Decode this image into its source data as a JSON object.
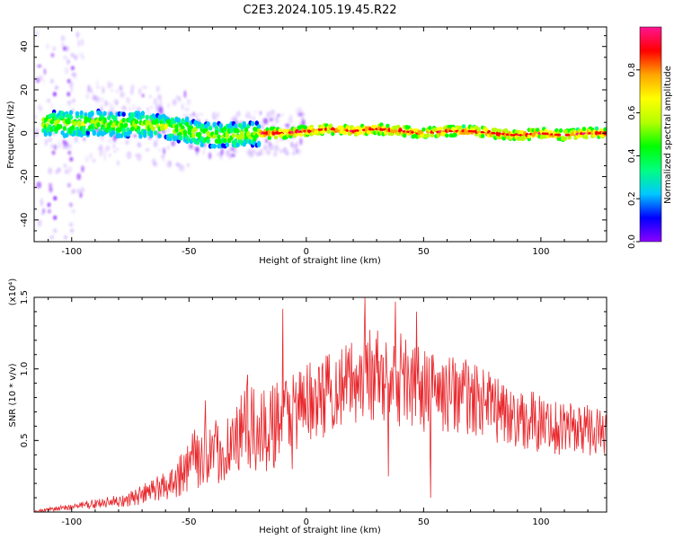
{
  "figure": {
    "title": "C2E3.2024.105.19.45.R22"
  },
  "colors": {
    "axis": "#000000",
    "snr_line": "#e8262b",
    "background": "#ffffff"
  },
  "chart_data": [
    {
      "type": "heatmap",
      "xlabel": "Height of straight line (km)",
      "ylabel": "Frequency (Hz)",
      "xlim": [
        -116,
        128
      ],
      "ylim": [
        -50,
        49
      ],
      "x_ticks": [
        -100,
        -50,
        0,
        50,
        100
      ],
      "x_tick_labels": [
        "-100",
        "-50",
        "0",
        "50",
        "100"
      ],
      "y_ticks": [
        -40,
        -20,
        0,
        20,
        40
      ],
      "y_tick_labels": [
        "-40",
        "-20",
        "0",
        "20",
        "40"
      ],
      "ridge": {
        "x": [
          -110,
          -100,
          -90,
          -80,
          -70,
          -60,
          -50,
          -40,
          -30,
          -20,
          -10,
          0,
          10,
          20,
          30,
          40,
          50,
          60,
          70,
          80,
          90,
          100,
          110,
          120,
          128
        ],
        "y": [
          5,
          4,
          5,
          4,
          4,
          3,
          1,
          -1,
          -1,
          0,
          0,
          1,
          2,
          1,
          2,
          1,
          0,
          1,
          1,
          0,
          -1,
          0,
          -1,
          0,
          0
        ]
      },
      "colorbar": {
        "label": "Normalized spectral amplitude",
        "range": [
          0,
          1
        ],
        "ticks": [
          0.0,
          0.2,
          0.4,
          0.6,
          0.8
        ],
        "tick_labels": [
          "0.0",
          "0.2",
          "0.4",
          "0.6",
          "0.8"
        ],
        "colormap": [
          "#8c00ff",
          "#0000ff",
          "#00c8ff",
          "#00ff7f",
          "#00ff00",
          "#b4ff00",
          "#ffff00",
          "#ffa500",
          "#ff0000",
          "#ff1493"
        ]
      }
    },
    {
      "type": "line",
      "xlabel": "Height of straight line (km)",
      "ylabel": "SNR (10 * v/v)",
      "yscale_label": "(x10⁴)",
      "xlim": [
        -116,
        128
      ],
      "ylim": [
        0,
        1.5
      ],
      "x_ticks": [
        -100,
        -50,
        0,
        50,
        100
      ],
      "x_tick_labels": [
        "-100",
        "-50",
        "0",
        "50",
        "100"
      ],
      "y_ticks": [
        0.5,
        1.0,
        1.5
      ],
      "y_tick_labels": [
        "0.5",
        "1.0",
        "1.5"
      ],
      "series": [
        {
          "x": [
            -116,
            -110,
            -100,
            -90,
            -80,
            -72,
            -65,
            -58,
            -52,
            -47,
            -42,
            -36,
            -30,
            -25,
            -20,
            -14,
            -8,
            -2,
            5,
            12,
            20,
            27,
            35,
            42,
            50,
            58,
            66,
            75,
            85,
            95,
            105,
            115,
            128
          ],
          "upper": [
            0.01,
            0.03,
            0.06,
            0.09,
            0.12,
            0.17,
            0.24,
            0.32,
            0.46,
            0.6,
            0.62,
            0.66,
            0.75,
            0.9,
            0.82,
            0.92,
            1.0,
            1.05,
            1.1,
            1.15,
            1.22,
            1.3,
            1.25,
            1.28,
            1.15,
            1.1,
            1.1,
            1.0,
            0.95,
            0.85,
            0.8,
            0.78,
            0.72
          ],
          "lower": [
            0.0,
            0.0,
            0.01,
            0.02,
            0.03,
            0.04,
            0.06,
            0.08,
            0.12,
            0.15,
            0.16,
            0.18,
            0.22,
            0.25,
            0.22,
            0.3,
            0.38,
            0.45,
            0.5,
            0.55,
            0.6,
            0.62,
            0.58,
            0.6,
            0.5,
            0.55,
            0.55,
            0.5,
            0.45,
            0.42,
            0.4,
            0.4,
            0.38
          ],
          "spikes": [
            {
              "x": -43,
              "y": 0.78
            },
            {
              "x": -25,
              "y": 0.96
            },
            {
              "x": -18,
              "y": 0.85
            },
            {
              "x": -10,
              "y": 1.42
            },
            {
              "x": 25,
              "y": 1.5
            },
            {
              "x": 38,
              "y": 1.47
            },
            {
              "x": 47,
              "y": 1.4
            },
            {
              "x": 54,
              "y": 1.1
            },
            {
              "x": 53,
              "y": 0.1
            },
            {
              "x": 35,
              "y": 0.25
            },
            {
              "x": -6,
              "y": 0.3
            }
          ]
        }
      ]
    }
  ]
}
